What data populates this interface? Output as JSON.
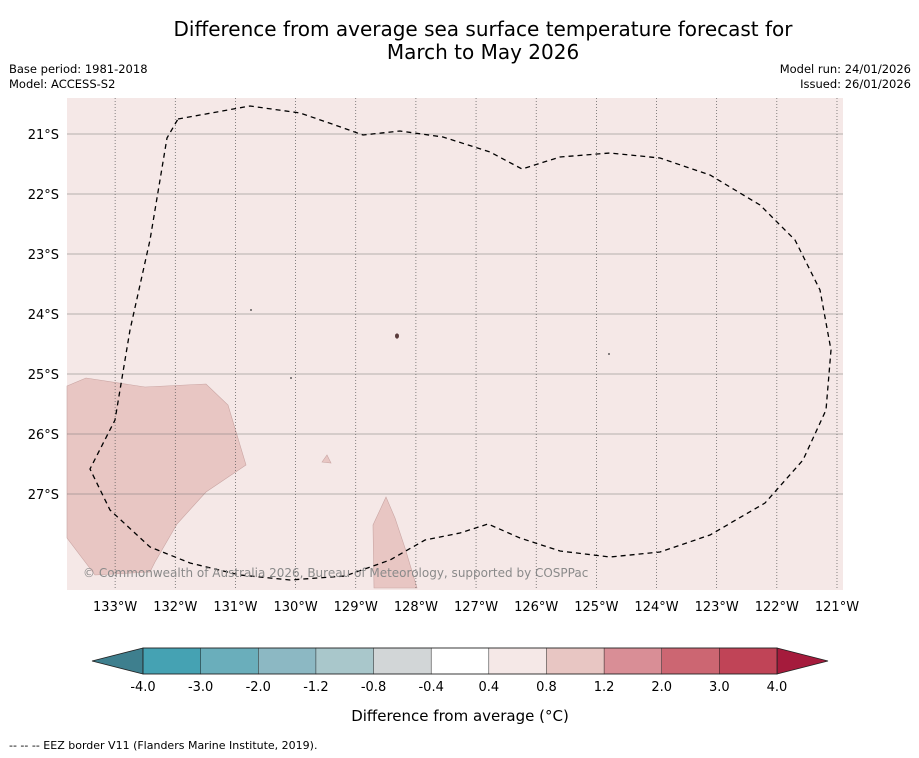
{
  "title_line1": "Difference from average sea surface temperature forecast for",
  "title_line2": "March to May 2026",
  "base_period": "Base period: 1981-2018",
  "model": "Model: ACCESS-S2",
  "model_run": "Model run: 24/01/2026",
  "issued": "Issued: 26/01/2026",
  "map": {
    "lon_range": [
      -133.8,
      -120.9
    ],
    "lat_range": [
      -28.6,
      -20.4
    ],
    "lat_ticks": [
      "21°S",
      "22°S",
      "23°S",
      "24°S",
      "25°S",
      "26°S",
      "27°S"
    ],
    "lon_ticks": [
      "133°W",
      "132°W",
      "131°W",
      "130°W",
      "129°W",
      "128°W",
      "127°W",
      "126°W",
      "125°W",
      "124°W",
      "123°W",
      "122°W",
      "121°W"
    ],
    "attribution": "© Commonwealth of Australia 2026, Bureau of Meteorology, supported by COSPPac",
    "background_category": "0.4 to 0.8",
    "warmer_patches_category": "0.8 to 1.2"
  },
  "colorbar": {
    "label": "Difference from average (°C)",
    "ticks": [
      "-4.0",
      "-3.0",
      "-2.0",
      "-1.2",
      "-0.8",
      "-0.4",
      "0.4",
      "0.8",
      "1.2",
      "2.0",
      "3.0",
      "4.0"
    ],
    "under_color": "#3e7f8e",
    "over_color": "#a51b3c",
    "colors": [
      "#45a2b3",
      "#6aaebb",
      "#8cb8c3",
      "#a9c7cb",
      "#d2d6d7",
      "#ffffff",
      "#f5e8e7",
      "#e8c6c3",
      "#d98e96",
      "#cc6672",
      "#c04457"
    ]
  },
  "footnote": "--  --  -- EEZ border V11 (Flanders Marine Institute, 2019)."
}
